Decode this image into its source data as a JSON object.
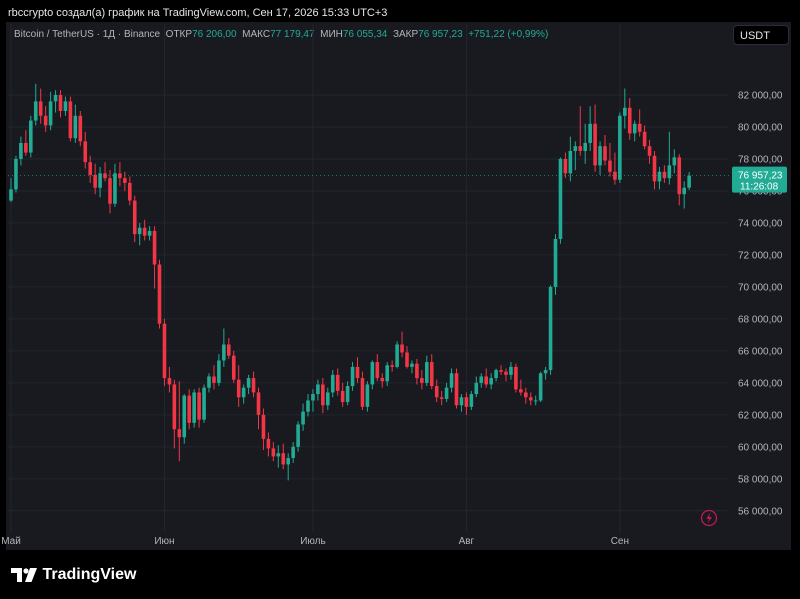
{
  "topbar": {
    "text": "rbccrypto создал(а) график на TradingView.com, Сен 17, 2026 15:33 UTC+3"
  },
  "info": {
    "symbol": "Bitcoin / TetherUS · 1Д · Binance",
    "open_label": "ОТКР",
    "open": "76 206,00",
    "high_label": "МАКС",
    "high": "77 179,47",
    "low_label": "МИН",
    "low": "76 055,34",
    "close_label": "ЗАКР",
    "close": "76 957,23",
    "change": "+751,22 (+0,99%)"
  },
  "currency_button": "USDT",
  "price_tag": {
    "price": "76 957,23",
    "timer": "11:26:08"
  },
  "footer": {
    "brand": "TradingView"
  },
  "colors": {
    "up": "#22ab94",
    "down": "#f23645",
    "bg": "#181a20",
    "grid": "#23262f",
    "text": "#b2b5be"
  },
  "chart_data": {
    "type": "candlestick",
    "title": "Bitcoin / TetherUS · 1Д · Binance",
    "y_ticks": [
      56000,
      58000,
      60000,
      62000,
      64000,
      66000,
      68000,
      70000,
      72000,
      74000,
      76000,
      78000,
      80000,
      82000
    ],
    "y_tick_labels": [
      "56 000,00",
      "58 000,00",
      "60 000,00",
      "62 000,00",
      "64 000,00",
      "66 000,00",
      "68 000,00",
      "70 000,00",
      "72 000,00",
      "74 000,00",
      "76 000,00",
      "78 000,00",
      "80 000,00",
      "82 000,00"
    ],
    "ylim": [
      54800,
      84500
    ],
    "x_labels": [
      {
        "label": "Май",
        "index": 0
      },
      {
        "label": "Июн",
        "index": 31
      },
      {
        "label": "Июль",
        "index": 61
      },
      {
        "label": "Авг",
        "index": 92
      },
      {
        "label": "Сен",
        "index": 123
      }
    ],
    "current_price": 76957.23,
    "candles": [
      {
        "o": 75400,
        "h": 76800,
        "l": 75300,
        "c": 76100
      },
      {
        "o": 76100,
        "h": 78200,
        "l": 75900,
        "c": 78000
      },
      {
        "o": 78000,
        "h": 79400,
        "l": 77600,
        "c": 79000
      },
      {
        "o": 79000,
        "h": 79800,
        "l": 78200,
        "c": 78400
      },
      {
        "o": 78400,
        "h": 80700,
        "l": 78100,
        "c": 80400
      },
      {
        "o": 80400,
        "h": 82700,
        "l": 80100,
        "c": 81600
      },
      {
        "o": 81600,
        "h": 82400,
        "l": 80200,
        "c": 80700
      },
      {
        "o": 80700,
        "h": 81300,
        "l": 79700,
        "c": 80100
      },
      {
        "o": 80100,
        "h": 82200,
        "l": 79800,
        "c": 81600
      },
      {
        "o": 81600,
        "h": 82300,
        "l": 80900,
        "c": 82000
      },
      {
        "o": 82000,
        "h": 82300,
        "l": 80600,
        "c": 81000
      },
      {
        "o": 81000,
        "h": 81900,
        "l": 80700,
        "c": 81600
      },
      {
        "o": 81600,
        "h": 81900,
        "l": 79100,
        "c": 79300
      },
      {
        "o": 79300,
        "h": 81400,
        "l": 79000,
        "c": 80700
      },
      {
        "o": 80700,
        "h": 81000,
        "l": 78800,
        "c": 79100
      },
      {
        "o": 79100,
        "h": 79700,
        "l": 77400,
        "c": 77800
      },
      {
        "o": 77800,
        "h": 78200,
        "l": 76500,
        "c": 77000
      },
      {
        "o": 77000,
        "h": 77700,
        "l": 75800,
        "c": 76200
      },
      {
        "o": 76200,
        "h": 77500,
        "l": 75600,
        "c": 77100
      },
      {
        "o": 77100,
        "h": 77800,
        "l": 76600,
        "c": 76800
      },
      {
        "o": 76800,
        "h": 77300,
        "l": 74600,
        "c": 75200
      },
      {
        "o": 75200,
        "h": 77700,
        "l": 75000,
        "c": 77100
      },
      {
        "o": 77100,
        "h": 77800,
        "l": 76300,
        "c": 76800
      },
      {
        "o": 76800,
        "h": 77200,
        "l": 76000,
        "c": 76500
      },
      {
        "o": 76500,
        "h": 76900,
        "l": 75100,
        "c": 75400
      },
      {
        "o": 75400,
        "h": 75700,
        "l": 72800,
        "c": 73300
      },
      {
        "o": 73300,
        "h": 74000,
        "l": 72600,
        "c": 73700
      },
      {
        "o": 73700,
        "h": 74200,
        "l": 72900,
        "c": 73200
      },
      {
        "o": 73200,
        "h": 73800,
        "l": 72900,
        "c": 73500
      },
      {
        "o": 73500,
        "h": 73800,
        "l": 69900,
        "c": 71400
      },
      {
        "o": 71400,
        "h": 71700,
        "l": 67400,
        "c": 67700
      },
      {
        "o": 67700,
        "h": 68000,
        "l": 63800,
        "c": 64300
      },
      {
        "o": 64300,
        "h": 65000,
        "l": 63400,
        "c": 63900
      },
      {
        "o": 63900,
        "h": 64200,
        "l": 59900,
        "c": 61100
      },
      {
        "o": 61100,
        "h": 64100,
        "l": 59100,
        "c": 60600
      },
      {
        "o": 60600,
        "h": 63300,
        "l": 60200,
        "c": 63200
      },
      {
        "o": 63200,
        "h": 63600,
        "l": 61100,
        "c": 61500
      },
      {
        "o": 61500,
        "h": 63600,
        "l": 61200,
        "c": 63400
      },
      {
        "o": 63400,
        "h": 63700,
        "l": 61200,
        "c": 61700
      },
      {
        "o": 61700,
        "h": 63900,
        "l": 61500,
        "c": 63700
      },
      {
        "o": 63700,
        "h": 64600,
        "l": 63400,
        "c": 64400
      },
      {
        "o": 64400,
        "h": 65100,
        "l": 63600,
        "c": 64000
      },
      {
        "o": 64000,
        "h": 65800,
        "l": 63800,
        "c": 65400
      },
      {
        "o": 65400,
        "h": 67400,
        "l": 65000,
        "c": 66400
      },
      {
        "o": 66400,
        "h": 66800,
        "l": 65500,
        "c": 65700
      },
      {
        "o": 65700,
        "h": 66000,
        "l": 64000,
        "c": 64200
      },
      {
        "o": 64200,
        "h": 65100,
        "l": 62500,
        "c": 63100
      },
      {
        "o": 63100,
        "h": 63900,
        "l": 62700,
        "c": 63700
      },
      {
        "o": 63700,
        "h": 64500,
        "l": 63300,
        "c": 64300
      },
      {
        "o": 64300,
        "h": 64700,
        "l": 63100,
        "c": 63400
      },
      {
        "o": 63400,
        "h": 63700,
        "l": 61100,
        "c": 62000
      },
      {
        "o": 62000,
        "h": 62400,
        "l": 59800,
        "c": 60500
      },
      {
        "o": 60500,
        "h": 60900,
        "l": 59400,
        "c": 59900
      },
      {
        "o": 59900,
        "h": 60300,
        "l": 59100,
        "c": 59400
      },
      {
        "o": 59400,
        "h": 60100,
        "l": 58700,
        "c": 59600
      },
      {
        "o": 59600,
        "h": 60200,
        "l": 58600,
        "c": 58900
      },
      {
        "o": 58900,
        "h": 59600,
        "l": 57900,
        "c": 59300
      },
      {
        "o": 59300,
        "h": 60300,
        "l": 59000,
        "c": 60000
      },
      {
        "o": 60000,
        "h": 61600,
        "l": 59700,
        "c": 61400
      },
      {
        "o": 61400,
        "h": 62700,
        "l": 61000,
        "c": 62200
      },
      {
        "o": 62200,
        "h": 63300,
        "l": 61900,
        "c": 62900
      },
      {
        "o": 62900,
        "h": 63600,
        "l": 62200,
        "c": 63300
      },
      {
        "o": 63300,
        "h": 64200,
        "l": 62900,
        "c": 63900
      },
      {
        "o": 63900,
        "h": 64300,
        "l": 62100,
        "c": 62600
      },
      {
        "o": 62600,
        "h": 63700,
        "l": 62300,
        "c": 63400
      },
      {
        "o": 63400,
        "h": 64800,
        "l": 63100,
        "c": 64500
      },
      {
        "o": 64500,
        "h": 64900,
        "l": 63200,
        "c": 63500
      },
      {
        "o": 63500,
        "h": 64000,
        "l": 62500,
        "c": 62800
      },
      {
        "o": 62800,
        "h": 64100,
        "l": 62600,
        "c": 63800
      },
      {
        "o": 63800,
        "h": 65300,
        "l": 63500,
        "c": 65000
      },
      {
        "o": 65000,
        "h": 65600,
        "l": 64000,
        "c": 64300
      },
      {
        "o": 64300,
        "h": 64700,
        "l": 62300,
        "c": 62500
      },
      {
        "o": 62500,
        "h": 64100,
        "l": 62200,
        "c": 63900
      },
      {
        "o": 63900,
        "h": 65400,
        "l": 63600,
        "c": 65300
      },
      {
        "o": 65300,
        "h": 65800,
        "l": 64100,
        "c": 64300
      },
      {
        "o": 64300,
        "h": 64600,
        "l": 63700,
        "c": 64100
      },
      {
        "o": 64100,
        "h": 65300,
        "l": 63800,
        "c": 65100
      },
      {
        "o": 65100,
        "h": 65400,
        "l": 64700,
        "c": 65000
      },
      {
        "o": 65000,
        "h": 66600,
        "l": 64900,
        "c": 66400
      },
      {
        "o": 66400,
        "h": 67200,
        "l": 65600,
        "c": 65900
      },
      {
        "o": 65900,
        "h": 66300,
        "l": 64900,
        "c": 65000
      },
      {
        "o": 65000,
        "h": 65400,
        "l": 64600,
        "c": 65200
      },
      {
        "o": 65200,
        "h": 65500,
        "l": 63900,
        "c": 64300
      },
      {
        "o": 64300,
        "h": 64800,
        "l": 63600,
        "c": 64000
      },
      {
        "o": 64000,
        "h": 65700,
        "l": 63800,
        "c": 65300
      },
      {
        "o": 65300,
        "h": 65800,
        "l": 63600,
        "c": 63800
      },
      {
        "o": 63800,
        "h": 64200,
        "l": 62800,
        "c": 63100
      },
      {
        "o": 63100,
        "h": 63500,
        "l": 62600,
        "c": 63000
      },
      {
        "o": 63000,
        "h": 64000,
        "l": 62800,
        "c": 63700
      },
      {
        "o": 63700,
        "h": 64900,
        "l": 63400,
        "c": 64600
      },
      {
        "o": 64600,
        "h": 64900,
        "l": 62400,
        "c": 62600
      },
      {
        "o": 62600,
        "h": 63300,
        "l": 62200,
        "c": 63100
      },
      {
        "o": 63100,
        "h": 63400,
        "l": 62000,
        "c": 62500
      },
      {
        "o": 62500,
        "h": 63500,
        "l": 62300,
        "c": 63300
      },
      {
        "o": 63300,
        "h": 64400,
        "l": 63100,
        "c": 64000
      },
      {
        "o": 64000,
        "h": 64600,
        "l": 63700,
        "c": 64400
      },
      {
        "o": 64400,
        "h": 64900,
        "l": 63700,
        "c": 63900
      },
      {
        "o": 63900,
        "h": 64600,
        "l": 63600,
        "c": 64300
      },
      {
        "o": 64300,
        "h": 64900,
        "l": 64100,
        "c": 64800
      },
      {
        "o": 64800,
        "h": 65100,
        "l": 64500,
        "c": 64700
      },
      {
        "o": 64700,
        "h": 64900,
        "l": 64100,
        "c": 64500
      },
      {
        "o": 64500,
        "h": 65300,
        "l": 64200,
        "c": 65000
      },
      {
        "o": 65000,
        "h": 65200,
        "l": 63400,
        "c": 63600
      },
      {
        "o": 63600,
        "h": 64200,
        "l": 63200,
        "c": 63400
      },
      {
        "o": 63400,
        "h": 63700,
        "l": 62700,
        "c": 63100
      },
      {
        "o": 63100,
        "h": 63400,
        "l": 62600,
        "c": 62900
      },
      {
        "o": 62900,
        "h": 63200,
        "l": 62600,
        "c": 62900
      },
      {
        "o": 62900,
        "h": 64700,
        "l": 62800,
        "c": 64600
      },
      {
        "o": 64600,
        "h": 65000,
        "l": 64200,
        "c": 64800
      },
      {
        "o": 64800,
        "h": 70100,
        "l": 64500,
        "c": 70000
      },
      {
        "o": 70000,
        "h": 73300,
        "l": 69500,
        "c": 73000
      },
      {
        "o": 73000,
        "h": 78100,
        "l": 72700,
        "c": 78000
      },
      {
        "o": 78000,
        "h": 78400,
        "l": 76800,
        "c": 77100
      },
      {
        "o": 77100,
        "h": 79400,
        "l": 76600,
        "c": 78500
      },
      {
        "o": 78500,
        "h": 79100,
        "l": 77300,
        "c": 78800
      },
      {
        "o": 78800,
        "h": 81300,
        "l": 78200,
        "c": 78500
      },
      {
        "o": 78500,
        "h": 80200,
        "l": 77700,
        "c": 79000
      },
      {
        "o": 79000,
        "h": 81300,
        "l": 78500,
        "c": 80200
      },
      {
        "o": 80200,
        "h": 81400,
        "l": 77200,
        "c": 77600
      },
      {
        "o": 77600,
        "h": 79100,
        "l": 77000,
        "c": 78800
      },
      {
        "o": 78800,
        "h": 79500,
        "l": 77600,
        "c": 77900
      },
      {
        "o": 77900,
        "h": 79000,
        "l": 76900,
        "c": 77200
      },
      {
        "o": 77200,
        "h": 78400,
        "l": 76400,
        "c": 76700
      },
      {
        "o": 76700,
        "h": 80900,
        "l": 76500,
        "c": 80700
      },
      {
        "o": 80700,
        "h": 82400,
        "l": 79900,
        "c": 81200
      },
      {
        "o": 81200,
        "h": 81800,
        "l": 79200,
        "c": 79600
      },
      {
        "o": 79600,
        "h": 80400,
        "l": 79100,
        "c": 80200
      },
      {
        "o": 80200,
        "h": 81100,
        "l": 79400,
        "c": 79700
      },
      {
        "o": 79700,
        "h": 80100,
        "l": 78600,
        "c": 78800
      },
      {
        "o": 78800,
        "h": 79200,
        "l": 77700,
        "c": 78200
      },
      {
        "o": 78200,
        "h": 78500,
        "l": 76100,
        "c": 76600
      },
      {
        "o": 76600,
        "h": 77500,
        "l": 76100,
        "c": 77200
      },
      {
        "o": 77200,
        "h": 77600,
        "l": 76500,
        "c": 76800
      },
      {
        "o": 76800,
        "h": 79700,
        "l": 76400,
        "c": 77600
      },
      {
        "o": 77600,
        "h": 78600,
        "l": 77100,
        "c": 78100
      },
      {
        "o": 78100,
        "h": 78300,
        "l": 75100,
        "c": 75800
      },
      {
        "o": 75800,
        "h": 76600,
        "l": 74900,
        "c": 76200
      },
      {
        "o": 76206,
        "h": 77179.47,
        "l": 76055.34,
        "c": 76957.23
      }
    ]
  }
}
